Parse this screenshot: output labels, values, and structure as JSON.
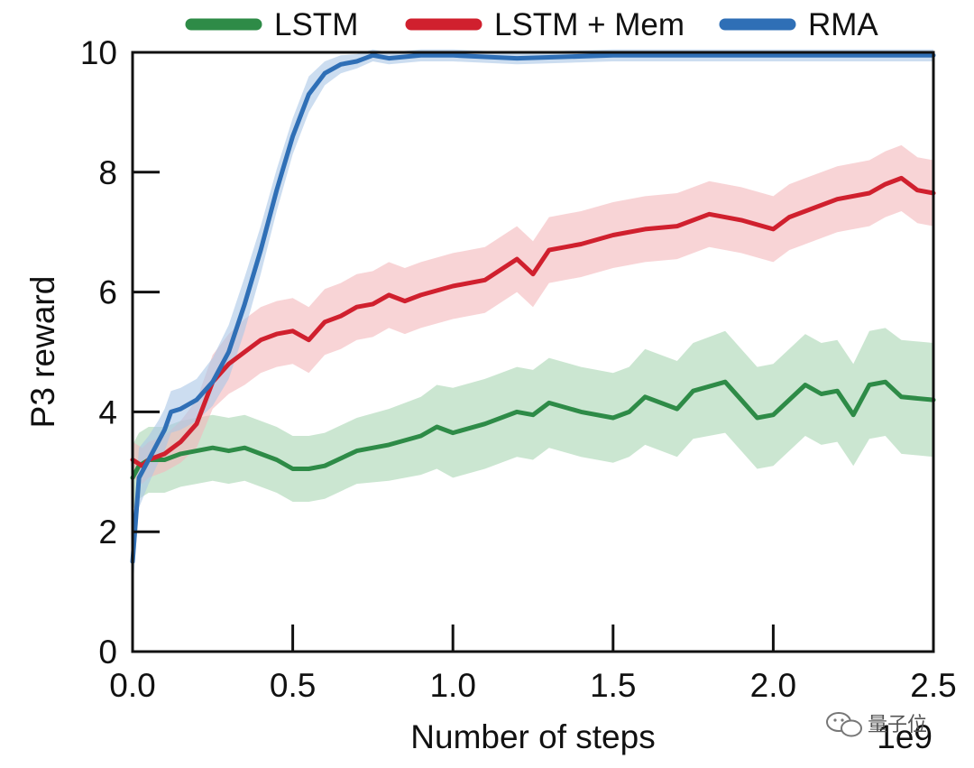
{
  "chart_data": {
    "type": "line",
    "title": "",
    "xlabel": "Number of steps",
    "ylabel": "P3 reward",
    "x_scale_label": "1e9",
    "xlim": [
      0,
      2.5
    ],
    "ylim": [
      0,
      10
    ],
    "xticks": [
      0.0,
      0.5,
      1.0,
      1.5,
      2.0,
      2.5
    ],
    "xtick_labels": [
      "0.0",
      "0.5",
      "1.0",
      "1.5",
      "2.0",
      "2.5"
    ],
    "yticks": [
      0,
      2,
      4,
      6,
      8,
      10
    ],
    "ytick_labels": [
      "0",
      "2",
      "4",
      "6",
      "8",
      "10"
    ],
    "grid": false,
    "legend_position": "top, outside plot",
    "series": [
      {
        "name": "LSTM",
        "color": "#2e8b47",
        "band_color": "#a8d5b2",
        "x": [
          0.0,
          0.02,
          0.05,
          0.1,
          0.15,
          0.2,
          0.25,
          0.3,
          0.35,
          0.4,
          0.45,
          0.5,
          0.55,
          0.6,
          0.7,
          0.8,
          0.9,
          0.95,
          1.0,
          1.1,
          1.2,
          1.25,
          1.3,
          1.4,
          1.5,
          1.55,
          1.6,
          1.7,
          1.75,
          1.85,
          1.9,
          1.95,
          2.0,
          2.1,
          2.15,
          2.2,
          2.25,
          2.3,
          2.35,
          2.4,
          2.5
        ],
        "values": [
          2.9,
          3.1,
          3.2,
          3.2,
          3.3,
          3.35,
          3.4,
          3.35,
          3.4,
          3.3,
          3.2,
          3.05,
          3.05,
          3.1,
          3.35,
          3.45,
          3.6,
          3.75,
          3.65,
          3.8,
          4.0,
          3.95,
          4.15,
          4.0,
          3.9,
          4.0,
          4.25,
          4.05,
          4.35,
          4.5,
          4.2,
          3.9,
          3.95,
          4.45,
          4.3,
          4.35,
          3.95,
          4.45,
          4.5,
          4.25,
          4.2
        ],
        "band": [
          0.55,
          0.55,
          0.55,
          0.55,
          0.55,
          0.55,
          0.55,
          0.55,
          0.55,
          0.55,
          0.55,
          0.55,
          0.55,
          0.55,
          0.55,
          0.6,
          0.65,
          0.7,
          0.75,
          0.75,
          0.75,
          0.75,
          0.75,
          0.75,
          0.75,
          0.75,
          0.8,
          0.8,
          0.8,
          0.85,
          0.85,
          0.85,
          0.85,
          0.85,
          0.85,
          0.85,
          0.85,
          0.9,
          0.9,
          0.95,
          0.95
        ]
      },
      {
        "name": "LSTM + Mem",
        "color": "#d0202e",
        "band_color": "#f4b8bb",
        "x": [
          0.0,
          0.03,
          0.05,
          0.1,
          0.15,
          0.2,
          0.25,
          0.3,
          0.35,
          0.4,
          0.45,
          0.5,
          0.55,
          0.6,
          0.65,
          0.7,
          0.75,
          0.8,
          0.85,
          0.9,
          1.0,
          1.1,
          1.2,
          1.25,
          1.3,
          1.35,
          1.4,
          1.5,
          1.6,
          1.7,
          1.8,
          1.9,
          2.0,
          2.05,
          2.1,
          2.2,
          2.3,
          2.35,
          2.4,
          2.45,
          2.5
        ],
        "values": [
          3.2,
          3.1,
          3.2,
          3.3,
          3.5,
          3.8,
          4.5,
          4.8,
          5.0,
          5.2,
          5.3,
          5.35,
          5.2,
          5.5,
          5.6,
          5.75,
          5.8,
          5.95,
          5.85,
          5.95,
          6.1,
          6.2,
          6.55,
          6.3,
          6.7,
          6.75,
          6.8,
          6.95,
          7.05,
          7.1,
          7.3,
          7.2,
          7.05,
          7.25,
          7.35,
          7.55,
          7.65,
          7.8,
          7.9,
          7.7,
          7.65
        ],
        "band": [
          0.3,
          0.3,
          0.3,
          0.3,
          0.35,
          0.4,
          0.45,
          0.5,
          0.55,
          0.55,
          0.55,
          0.55,
          0.55,
          0.55,
          0.55,
          0.55,
          0.55,
          0.55,
          0.55,
          0.55,
          0.55,
          0.55,
          0.55,
          0.55,
          0.55,
          0.55,
          0.55,
          0.55,
          0.55,
          0.55,
          0.55,
          0.55,
          0.55,
          0.55,
          0.55,
          0.55,
          0.55,
          0.55,
          0.55,
          0.55,
          0.55
        ]
      },
      {
        "name": "RMA",
        "color": "#2f6fb6",
        "band_color": "#aac7e6",
        "x": [
          0.0,
          0.02,
          0.05,
          0.08,
          0.1,
          0.12,
          0.15,
          0.2,
          0.25,
          0.3,
          0.35,
          0.4,
          0.45,
          0.5,
          0.55,
          0.6,
          0.65,
          0.7,
          0.75,
          0.8,
          0.9,
          1.0,
          1.2,
          1.5,
          1.8,
          2.0,
          2.2,
          2.5
        ],
        "values": [
          1.5,
          2.9,
          3.2,
          3.5,
          3.7,
          4.0,
          4.05,
          4.2,
          4.5,
          5.0,
          5.8,
          6.7,
          7.7,
          8.6,
          9.3,
          9.65,
          9.8,
          9.85,
          9.95,
          9.9,
          9.95,
          9.95,
          9.9,
          9.95,
          9.95,
          9.95,
          9.95,
          9.95
        ],
        "band": [
          0.5,
          0.5,
          0.4,
          0.35,
          0.35,
          0.35,
          0.35,
          0.35,
          0.4,
          0.45,
          0.45,
          0.4,
          0.35,
          0.3,
          0.3,
          0.2,
          0.15,
          0.12,
          0.1,
          0.1,
          0.1,
          0.1,
          0.1,
          0.1,
          0.1,
          0.1,
          0.1,
          0.1
        ]
      }
    ]
  },
  "watermark": {
    "text": "量子位",
    "icon": "wechat-icon"
  }
}
